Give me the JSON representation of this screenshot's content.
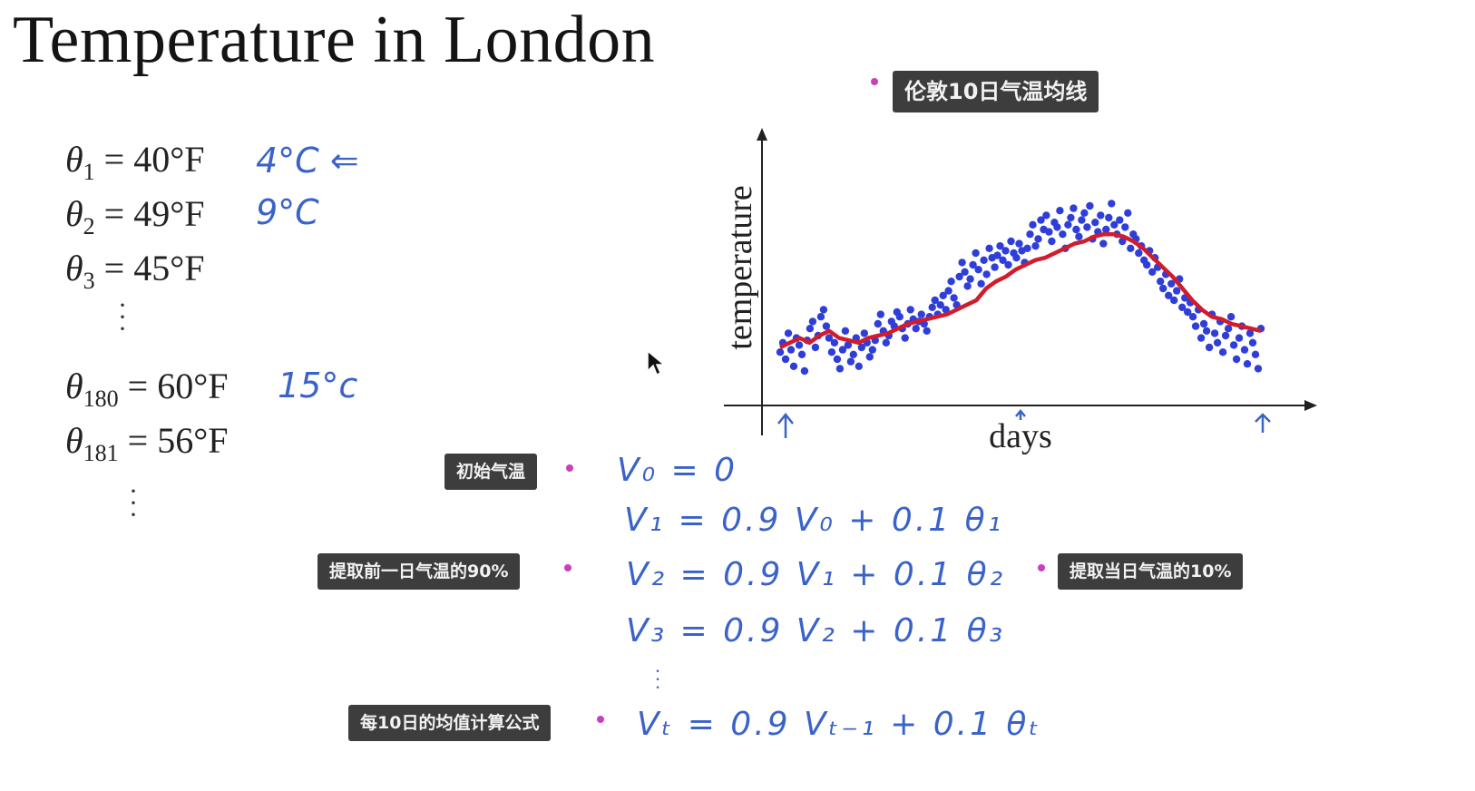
{
  "title": "Temperature in London",
  "equations": [
    {
      "theta": "θ",
      "sub": "1",
      "rhs": " = 40°F",
      "note": "4°C  ⇐"
    },
    {
      "theta": "θ",
      "sub": "2",
      "rhs": " = 49°F",
      "note": "9°C"
    },
    {
      "theta": "θ",
      "sub": "3",
      "rhs": " = 45°F",
      "note": ""
    },
    {
      "theta": "θ",
      "sub": "180",
      "rhs": " = 60°F",
      "note": "15°c"
    },
    {
      "theta": "θ",
      "sub": "181",
      "rhs": " = 56°F",
      "note": ""
    }
  ],
  "annotations": {
    "chart_caption": "伦敦10日气温均线",
    "initial": "初始气温",
    "prev90": "提取前一日气温的90%",
    "today10": "提取当日气温的10%",
    "formula": "每10日的均值计算公式"
  },
  "handwriting": [
    "V₀ = 0",
    "V₁ = 0.9 V₀   + 0.1 θ₁",
    "V₂ = 0.9 V₁   + 0.1 θ₂",
    "V₃ = 0.9 V₂   + 0.1 θ₃",
    "Vₜ = 0.9 Vₜ₋₁   + 0.1 θₜ"
  ],
  "colors": {
    "scatter": "#2f3ed8",
    "average_line": "#d01c2c",
    "handwriting": "#3a63c9",
    "tag_bg": "#3d3d3d",
    "tag_dot": "#c93fbf"
  },
  "chart_data": {
    "type": "scatter",
    "xlabel": "days",
    "ylabel": "temperature",
    "xlim": [
      0,
      185
    ],
    "ylim": [
      0,
      100
    ],
    "series": [
      {
        "type": "scatter",
        "values": [
          18,
          22,
          15,
          26,
          19,
          12,
          24,
          21,
          17,
          10,
          23,
          28,
          31,
          20,
          25,
          33,
          36,
          29,
          24,
          18,
          22,
          15,
          11,
          19,
          27,
          21,
          14,
          17,
          24,
          12,
          20,
          26,
          22,
          16,
          19,
          23,
          30,
          34,
          27,
          22,
          25,
          31,
          29,
          35,
          33,
          28,
          24,
          30,
          36,
          32,
          28,
          31,
          34,
          30,
          27,
          33,
          37,
          40,
          34,
          38,
          42,
          36,
          44,
          48,
          41,
          38,
          50,
          56,
          52,
          46,
          49,
          55,
          60,
          53,
          47,
          57,
          51,
          62,
          58,
          54,
          59,
          63,
          57,
          61,
          55,
          65,
          60,
          58,
          64,
          61,
          56,
          62,
          68,
          72,
          63,
          66,
          74,
          70,
          76,
          69,
          65,
          73,
          71,
          78,
          68,
          62,
          72,
          75,
          79,
          70,
          67,
          74,
          77,
          71,
          80,
          66,
          73,
          69,
          76,
          64,
          70,
          75,
          81,
          72,
          68,
          74,
          65,
          71,
          77,
          62,
          68,
          66,
          60,
          63,
          57,
          55,
          61,
          52,
          58,
          54,
          48,
          45,
          51,
          42,
          47,
          40,
          44,
          49,
          37,
          41,
          35,
          39,
          33,
          29,
          36,
          24,
          30,
          27,
          20,
          34,
          26,
          22,
          31,
          18,
          25,
          28,
          33,
          21,
          15,
          24,
          29,
          19,
          13,
          26,
          22,
          17,
          11,
          28
        ]
      },
      {
        "type": "line",
        "values": [
          20,
          22,
          24,
          22,
          25,
          27,
          24,
          23,
          22,
          24,
          25,
          26,
          28,
          30,
          31,
          32,
          33,
          34,
          36,
          38,
          40,
          45,
          48,
          50,
          53,
          55,
          57,
          58,
          60,
          62,
          64,
          65,
          67,
          68,
          68,
          67,
          65,
          62,
          58,
          54,
          50,
          45,
          40,
          36,
          33,
          32,
          30,
          29,
          28,
          27
        ]
      }
    ]
  }
}
